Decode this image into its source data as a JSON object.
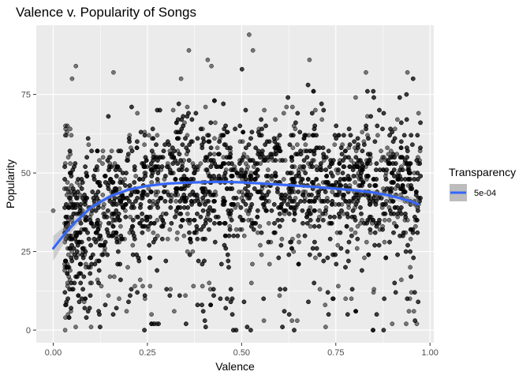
{
  "chart_data": {
    "type": "scatter",
    "title": "Valence v. Popularity of Songs",
    "xlabel": "Valence",
    "ylabel": "Popularity",
    "xlim": [
      -0.045,
      1.01
    ],
    "ylim": [
      -4,
      97
    ],
    "x_ticks": [
      0.0,
      0.25,
      0.5,
      0.75,
      1.0
    ],
    "x_tick_labels": [
      "0.00",
      "0.25",
      "0.50",
      "0.75",
      "1.00"
    ],
    "y_ticks": [
      0,
      25,
      50,
      75
    ],
    "y_tick_labels": [
      "0",
      "25",
      "50",
      "75"
    ],
    "grid": true,
    "legend": {
      "title": "Transparency",
      "entries": [
        "5e-04"
      ],
      "placement": "right"
    },
    "colors": {
      "panel": "#ebebeb",
      "grid_major": "#ffffff",
      "points": "#000000",
      "smooth_line": "#3366ff",
      "confidence_band": "#999999"
    },
    "point_alpha": 0.5,
    "point_count_visible": "several thousand",
    "smooth": {
      "x": [
        0.0,
        0.03,
        0.06,
        0.1,
        0.15,
        0.2,
        0.25,
        0.3,
        0.35,
        0.4,
        0.45,
        0.5,
        0.55,
        0.6,
        0.65,
        0.7,
        0.75,
        0.8,
        0.85,
        0.9,
        0.95,
        0.97
      ],
      "y": [
        26.0,
        30.5,
        34.5,
        39.0,
        42.5,
        44.7,
        45.9,
        46.6,
        46.9,
        47.1,
        47.2,
        47.0,
        46.7,
        46.3,
        45.9,
        45.5,
        45.0,
        44.5,
        43.8,
        42.6,
        41.0,
        40.0
      ],
      "band_lower": [
        22.0,
        28.0,
        33.0,
        38.0,
        41.8,
        44.1,
        45.4,
        46.1,
        46.4,
        46.6,
        46.7,
        46.5,
        46.2,
        45.8,
        45.4,
        45.0,
        44.4,
        43.8,
        43.0,
        41.6,
        39.6,
        38.3
      ],
      "band_upper": [
        30.0,
        33.0,
        36.0,
        40.0,
        43.2,
        45.3,
        46.4,
        47.1,
        47.4,
        47.6,
        47.7,
        47.5,
        47.2,
        46.8,
        46.4,
        46.0,
        45.6,
        45.2,
        44.6,
        43.6,
        42.4,
        41.7
      ]
    },
    "sample_points": [
      [
        0.0,
        38
      ],
      [
        0.52,
        94
      ],
      [
        0.53,
        89
      ],
      [
        0.36,
        89
      ],
      [
        0.41,
        86
      ],
      [
        0.68,
        86
      ],
      [
        0.42,
        84
      ],
      [
        0.06,
        84
      ],
      [
        0.05,
        80
      ],
      [
        0.16,
        82
      ],
      [
        0.83,
        82
      ],
      [
        0.94,
        82
      ],
      [
        0.04,
        55
      ],
      [
        0.03,
        45
      ]
    ]
  }
}
